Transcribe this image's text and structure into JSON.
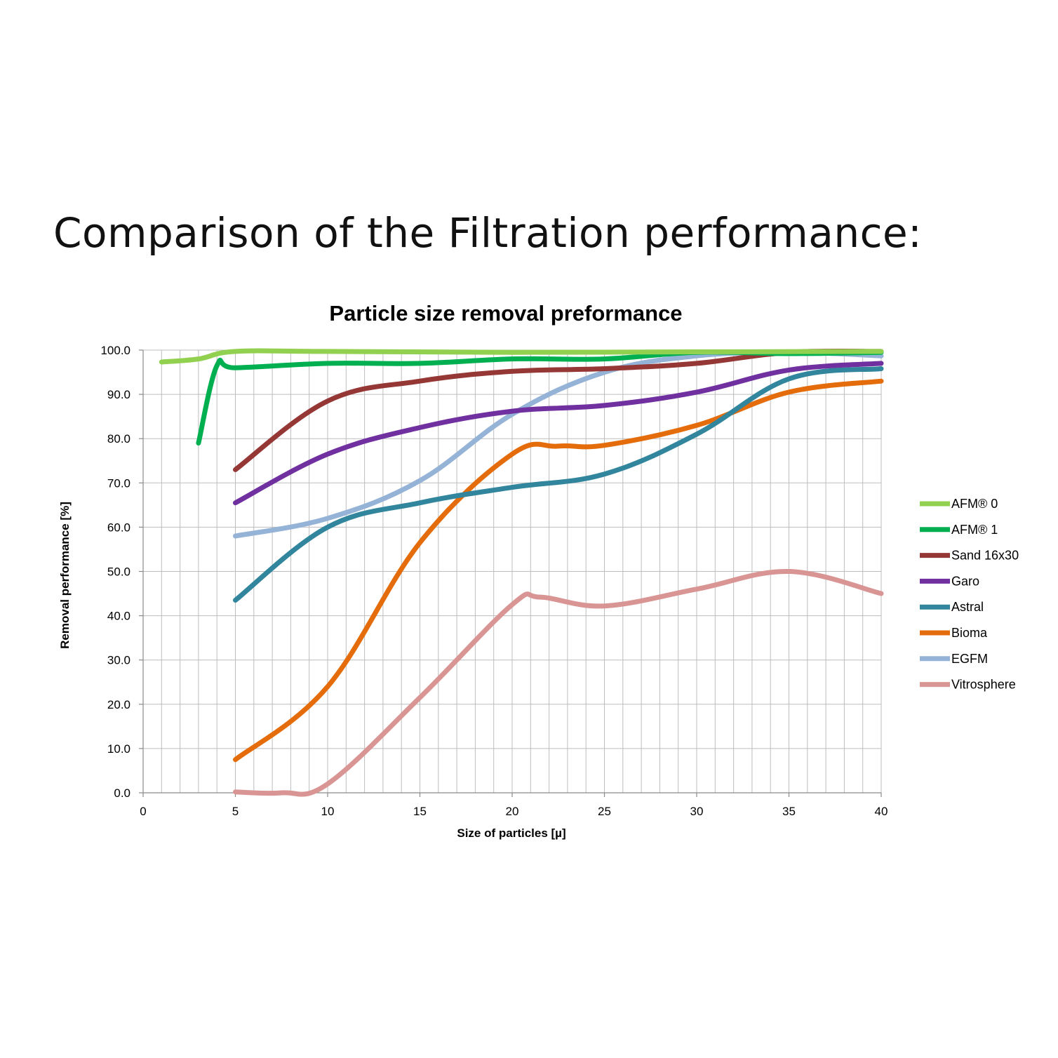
{
  "slide": {
    "title": "Comparison of the Filtration performance:"
  },
  "chart_data": {
    "type": "line",
    "title": "Particle size removal preformance",
    "xlabel": "Size of particles [µ]",
    "ylabel": "Removal performance [%]",
    "xlim": [
      0,
      40
    ],
    "ylim": [
      0,
      100
    ],
    "x_ticks": [
      "0",
      "5",
      "10",
      "15",
      "20",
      "25",
      "30",
      "35",
      "40"
    ],
    "y_ticks": [
      "0.0",
      "10.0",
      "20.0",
      "30.0",
      "40.0",
      "50.0",
      "60.0",
      "70.0",
      "80.0",
      "90.0",
      "100.0"
    ],
    "grid": true,
    "legend_position": "right",
    "series": [
      {
        "name": "AFM® 0",
        "color": "#92d050",
        "points": [
          [
            1,
            97.3
          ],
          [
            3,
            98.0
          ],
          [
            5,
            99.7
          ],
          [
            10,
            99.7
          ],
          [
            20,
            99.5
          ],
          [
            30,
            99.6
          ],
          [
            40,
            99.7
          ]
        ]
      },
      {
        "name": "AFM® 1",
        "color": "#00b050",
        "points": [
          [
            3,
            79
          ],
          [
            4,
            96.5
          ],
          [
            5,
            96.0
          ],
          [
            10,
            97.0
          ],
          [
            15,
            97.0
          ],
          [
            20,
            98.0
          ],
          [
            25,
            98.0
          ],
          [
            30,
            99.5
          ],
          [
            35,
            99.2
          ],
          [
            40,
            99.5
          ]
        ]
      },
      {
        "name": "Sand 16x30",
        "color": "#953735",
        "points": [
          [
            5,
            73
          ],
          [
            10,
            88.5
          ],
          [
            15,
            93
          ],
          [
            20,
            95.2
          ],
          [
            25,
            95.8
          ],
          [
            30,
            97
          ],
          [
            35,
            99.5
          ],
          [
            40,
            99.7
          ]
        ]
      },
      {
        "name": "Garo",
        "color": "#7030a0",
        "points": [
          [
            5,
            65.5
          ],
          [
            10,
            76.5
          ],
          [
            15,
            82.5
          ],
          [
            20,
            86.2
          ],
          [
            25,
            87.5
          ],
          [
            30,
            90.5
          ],
          [
            35,
            95.5
          ],
          [
            40,
            97
          ]
        ]
      },
      {
        "name": "Astral",
        "color": "#31859c",
        "points": [
          [
            5,
            43.5
          ],
          [
            10,
            60
          ],
          [
            15,
            65.5
          ],
          [
            20,
            69
          ],
          [
            25,
            72
          ],
          [
            30,
            81
          ],
          [
            35,
            93.5
          ],
          [
            40,
            95.8
          ]
        ]
      },
      {
        "name": "Bioma",
        "color": "#e46c0a",
        "points": [
          [
            5,
            7.5
          ],
          [
            10,
            24
          ],
          [
            15,
            56.5
          ],
          [
            20,
            76.5
          ],
          [
            22.5,
            78.3
          ],
          [
            25,
            78.5
          ],
          [
            30,
            83
          ],
          [
            35,
            90.5
          ],
          [
            40,
            93
          ]
        ]
      },
      {
        "name": "EGFM",
        "color": "#95b3d7",
        "points": [
          [
            5,
            58
          ],
          [
            10,
            62
          ],
          [
            15,
            70.5
          ],
          [
            20,
            85.5
          ],
          [
            25,
            95
          ],
          [
            30,
            98.7
          ],
          [
            35,
            99.5
          ],
          [
            40,
            98.7
          ]
        ]
      },
      {
        "name": "Vitrosphere",
        "color": "#d99594",
        "points": [
          [
            5,
            0.2
          ],
          [
            7.5,
            0
          ],
          [
            10,
            2
          ],
          [
            15,
            21.5
          ],
          [
            20,
            42.5
          ],
          [
            21.5,
            44.2
          ],
          [
            25,
            42.2
          ],
          [
            30,
            46
          ],
          [
            35,
            50
          ],
          [
            40,
            45
          ]
        ]
      }
    ]
  }
}
